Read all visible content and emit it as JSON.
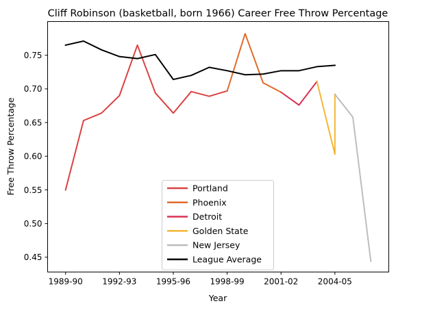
{
  "chart_data": {
    "type": "line",
    "title": "Cliff Robinson (basketball, born 1966) Career Free Throw Percentage",
    "xlabel": "Year",
    "ylabel": "Free Throw Percentage",
    "x_ticks": [
      {
        "x": 0,
        "label": "1989-90"
      },
      {
        "x": 3,
        "label": "1992-93"
      },
      {
        "x": 6,
        "label": "1995-96"
      },
      {
        "x": 9,
        "label": "1998-99"
      },
      {
        "x": 12,
        "label": "2001-02"
      },
      {
        "x": 15,
        "label": "2004-05"
      }
    ],
    "y_ticks": [
      "0.45",
      "0.50",
      "0.55",
      "0.60",
      "0.65",
      "0.70",
      "0.75"
    ],
    "xlim": [
      -1,
      18
    ],
    "ylim": [
      0.428,
      0.8
    ],
    "legend_position": "lower center",
    "series": [
      {
        "name": "Portland",
        "color": "#d94141",
        "x": [
          0,
          1,
          2,
          3,
          4,
          5,
          6,
          7,
          8,
          9
        ],
        "y": [
          0.55,
          0.653,
          0.664,
          0.69,
          0.765,
          0.694,
          0.664,
          0.696,
          0.689,
          0.697
        ]
      },
      {
        "name": "Phoenix",
        "color": "#e06a2a",
        "x": [
          9,
          10,
          11,
          12
        ],
        "y": [
          0.697,
          0.782,
          0.709,
          0.695
        ]
      },
      {
        "name": "Detroit",
        "color": "#dc2f52",
        "x": [
          12,
          13,
          14
        ],
        "y": [
          0.695,
          0.676,
          0.711
        ]
      },
      {
        "name": "Golden State",
        "color": "#f3b632",
        "x": [
          14,
          15,
          15
        ],
        "y": [
          0.711,
          0.603,
          0.692
        ]
      },
      {
        "name": "New Jersey",
        "color": "#bdbdbd",
        "x": [
          15,
          16,
          17
        ],
        "y": [
          0.692,
          0.658,
          0.444
        ]
      },
      {
        "name": "League Average",
        "color": "#000000",
        "x": [
          0,
          1,
          2,
          3,
          4,
          5,
          6,
          7,
          8,
          9,
          10,
          11,
          12,
          13,
          14,
          15
        ],
        "y": [
          0.765,
          0.771,
          0.758,
          0.748,
          0.745,
          0.751,
          0.714,
          0.72,
          0.732,
          0.727,
          0.721,
          0.722,
          0.727,
          0.727,
          0.733,
          0.735
        ]
      }
    ]
  }
}
